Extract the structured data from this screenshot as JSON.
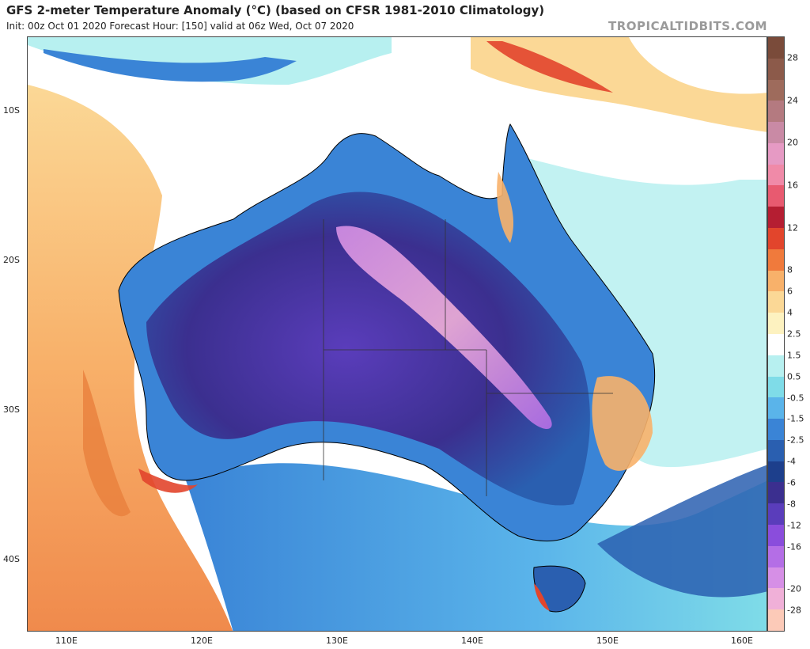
{
  "header": {
    "title": "GFS 2-meter Temperature Anomaly (°C) (based on CFSR 1981-2010 Climatology)",
    "subtitle": "Init: 00z Oct 01 2020   Forecast Hour: [150]   valid at 06z Wed, Oct 07 2020",
    "brand": "TROPICALTIDBITS.COM"
  },
  "axes": {
    "lat_labels": [
      "10S",
      "20S",
      "30S",
      "40S"
    ],
    "lon_labels": [
      "110E",
      "120E",
      "130E",
      "140E",
      "150E",
      "160E"
    ]
  },
  "colorbar": {
    "labels": [
      "28",
      "24",
      "20",
      "16",
      "12",
      "8",
      "6",
      "4",
      "2.5",
      "1.5",
      "0.5",
      "-0.5",
      "-1.5",
      "-2.5",
      "-4",
      "-6",
      "-8",
      "-12",
      "-16",
      "-20",
      "-28"
    ],
    "colors": [
      "#7a4b3a",
      "#8c5a4a",
      "#9e6b5c",
      "#b47a80",
      "#c98aa5",
      "#e69ac4",
      "#f08aa8",
      "#e85a70",
      "#b51e32",
      "#e2452c",
      "#f07a3c",
      "#f8b16a",
      "#fbd896",
      "#fdf2c0",
      "#ffffff",
      "#b7f0f0",
      "#7fdce8",
      "#5ab4ea",
      "#3a84d6",
      "#2a5fb0",
      "#1d3f8c",
      "#3b2f8f",
      "#5a3dbb",
      "#8a4ddc",
      "#b46ee6",
      "#d68fe6",
      "#f0b0d8",
      "#fccab8"
    ]
  },
  "map": {
    "ocean_color": "#ffffff",
    "land_base_color": "#3a84d6",
    "cold_core_color": "#5a3dbb",
    "coldest_color": "#d68fe6",
    "warm_color": "#f8b16a"
  }
}
